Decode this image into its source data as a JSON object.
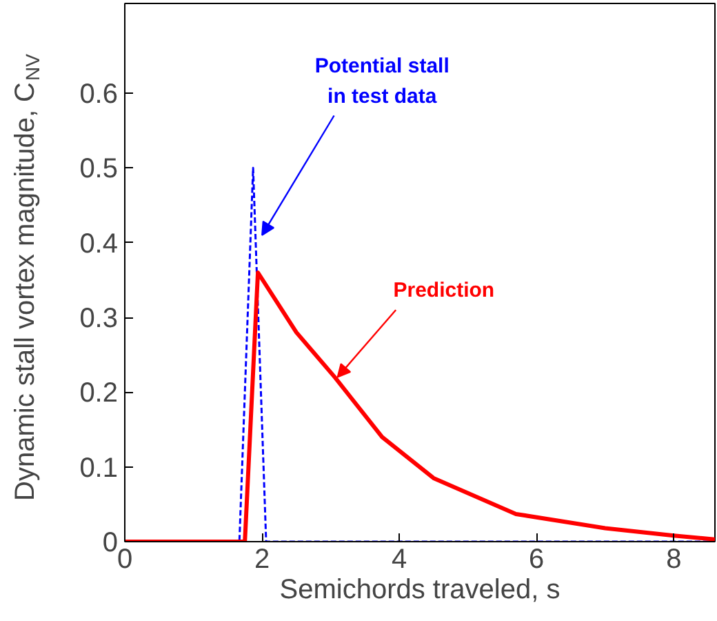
{
  "chart_data": {
    "type": "line",
    "xlabel": "Semichords traveled, s",
    "ylabel": "Dynamic stall vortex magnitude, C$_{NV}$",
    "xlim": [
      0,
      8.6
    ],
    "ylim": [
      0,
      0.72
    ],
    "xticks": [
      0,
      2,
      4,
      6,
      8
    ],
    "yticks": [
      0,
      0.1,
      0.2,
      0.3,
      0.4,
      0.5,
      0.6
    ],
    "grid": false,
    "series": [
      {
        "color": "#0000ff",
        "line_style": "dashed",
        "x": [
          0,
          1.67,
          1.87,
          2.06,
          8.6
        ],
        "values": [
          0,
          0,
          0.5,
          0,
          0
        ]
      },
      {
        "color": "#ff0000",
        "line_style": "solid",
        "x": [
          0,
          1.75,
          1.94,
          2.5,
          3.06,
          3.75,
          4.5,
          5.7,
          7,
          8,
          8.6
        ],
        "values": [
          0,
          0,
          0.36,
          0.28,
          0.22,
          0.14,
          0.085,
          0.037,
          0.018,
          0.008,
          0.003
        ]
      }
    ],
    "annotations": [
      {
        "text": "Potential stall\nin test data",
        "x": 1.95,
        "y": 0.41
      },
      {
        "text": "Prediction",
        "x": 3.05,
        "y": 0.22
      }
    ]
  }
}
